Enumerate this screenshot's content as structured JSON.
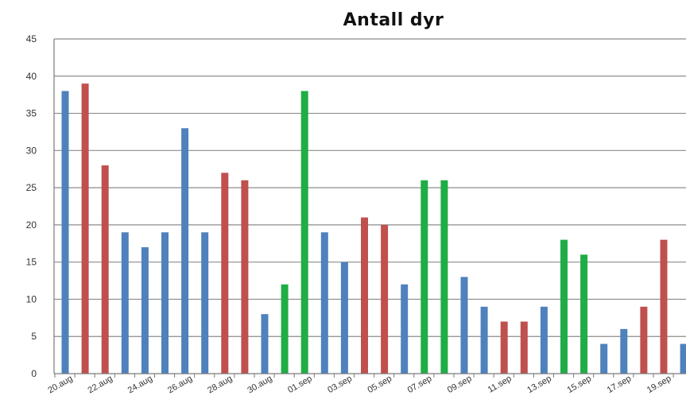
{
  "chart_data": {
    "type": "bar",
    "title": "Antall dyr",
    "xlabel": "",
    "ylabel": "",
    "ylim": [
      0,
      45
    ],
    "yticks": [
      0,
      5,
      10,
      15,
      20,
      25,
      30,
      35,
      40,
      45
    ],
    "grid": true,
    "legend": "none",
    "colors": {
      "blue": "#4f81bd",
      "red": "#c0504d",
      "green": "#1fad45"
    },
    "tick_labels": [
      "20.aug",
      "22.aug",
      "24.aug",
      "26.aug",
      "28.aug",
      "30.aug",
      "01.sep",
      "03.sep",
      "05.sep",
      "07.sep",
      "09.sep",
      "11.sep",
      "13.sep",
      "15.sep",
      "17.sep",
      "19.sep"
    ],
    "bars": [
      {
        "category": "20.aug",
        "value": 38,
        "color": "blue"
      },
      {
        "category": "21.aug",
        "value": 39,
        "color": "red"
      },
      {
        "category": "22.aug",
        "value": 28,
        "color": "red"
      },
      {
        "category": "23.aug",
        "value": 19,
        "color": "blue"
      },
      {
        "category": "24.aug",
        "value": 17,
        "color": "blue"
      },
      {
        "category": "25.aug",
        "value": 19,
        "color": "blue"
      },
      {
        "category": "26.aug",
        "value": 33,
        "color": "blue"
      },
      {
        "category": "27.aug",
        "value": 19,
        "color": "blue"
      },
      {
        "category": "28.aug",
        "value": 27,
        "color": "red"
      },
      {
        "category": "29.aug",
        "value": 26,
        "color": "red"
      },
      {
        "category": "30.aug",
        "value": 8,
        "color": "blue"
      },
      {
        "category": "31.aug",
        "value": 12,
        "color": "green"
      },
      {
        "category": "01.sep",
        "value": 38,
        "color": "green"
      },
      {
        "category": "02.sep",
        "value": 19,
        "color": "blue"
      },
      {
        "category": "03.sep",
        "value": 15,
        "color": "blue"
      },
      {
        "category": "04.sep",
        "value": 21,
        "color": "red"
      },
      {
        "category": "05.sep",
        "value": 20,
        "color": "red"
      },
      {
        "category": "06.sep",
        "value": 12,
        "color": "blue"
      },
      {
        "category": "07.sep",
        "value": 26,
        "color": "green"
      },
      {
        "category": "08.sep",
        "value": 26,
        "color": "green"
      },
      {
        "category": "09.sep",
        "value": 13,
        "color": "blue"
      },
      {
        "category": "10.sep",
        "value": 9,
        "color": "blue"
      },
      {
        "category": "11.sep",
        "value": 7,
        "color": "red"
      },
      {
        "category": "12.sep",
        "value": 7,
        "color": "red"
      },
      {
        "category": "13.sep",
        "value": 9,
        "color": "blue"
      },
      {
        "category": "14.sep",
        "value": 18,
        "color": "green"
      },
      {
        "category": "15.sep",
        "value": 16,
        "color": "green"
      },
      {
        "category": "16.sep",
        "value": 4,
        "color": "blue"
      },
      {
        "category": "17.sep",
        "value": 6,
        "color": "blue"
      },
      {
        "category": "18.sep",
        "value": 9,
        "color": "red"
      },
      {
        "category": "19.sep",
        "value": 18,
        "color": "red"
      },
      {
        "category": "20.sep",
        "value": 4,
        "color": "blue"
      }
    ]
  }
}
